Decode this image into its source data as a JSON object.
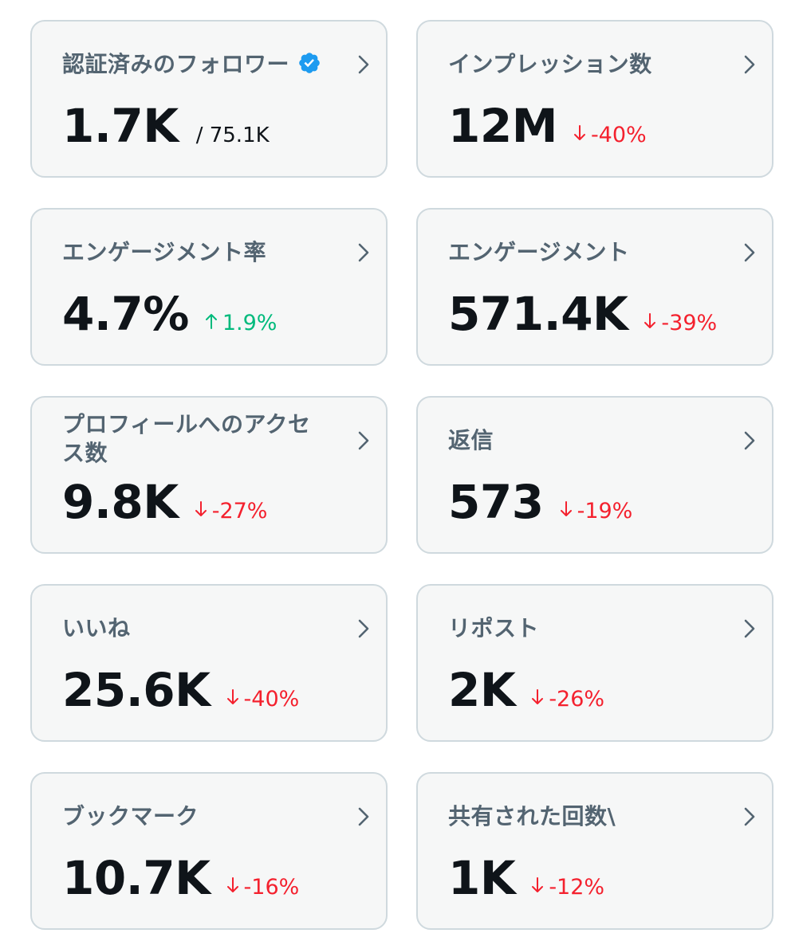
{
  "colors": {
    "down": "#f4212e",
    "up": "#00ba7c",
    "verified": "#1d9bf0",
    "card_bg": "#f6f7f7",
    "card_border": "#cfd9de"
  },
  "cards": [
    {
      "title": "認証済みのフォロワー",
      "value": "1.7K",
      "sub": "/ 75.1K",
      "verified_icon": "verified-badge-icon"
    },
    {
      "title": "インプレッション数",
      "value": "12M",
      "delta": "-40%",
      "direction": "down"
    },
    {
      "title": "エンゲージメント率",
      "value": "4.7%",
      "delta": "1.9%",
      "direction": "up"
    },
    {
      "title": "エンゲージメント",
      "value": "571.4K",
      "delta": "-39%",
      "direction": "down"
    },
    {
      "title": "プロフィールへのアクセス数",
      "value": "9.8K",
      "delta": "-27%",
      "direction": "down"
    },
    {
      "title": "返信",
      "value": "573",
      "delta": "-19%",
      "direction": "down"
    },
    {
      "title": "いいね",
      "value": "25.6K",
      "delta": "-40%",
      "direction": "down"
    },
    {
      "title": "リポスト",
      "value": "2K",
      "delta": "-26%",
      "direction": "down"
    },
    {
      "title": "ブックマーク",
      "value": "10.7K",
      "delta": "-16%",
      "direction": "down"
    },
    {
      "title": "共有された回数\\",
      "value": "1K",
      "delta": "-12%",
      "direction": "down"
    }
  ]
}
